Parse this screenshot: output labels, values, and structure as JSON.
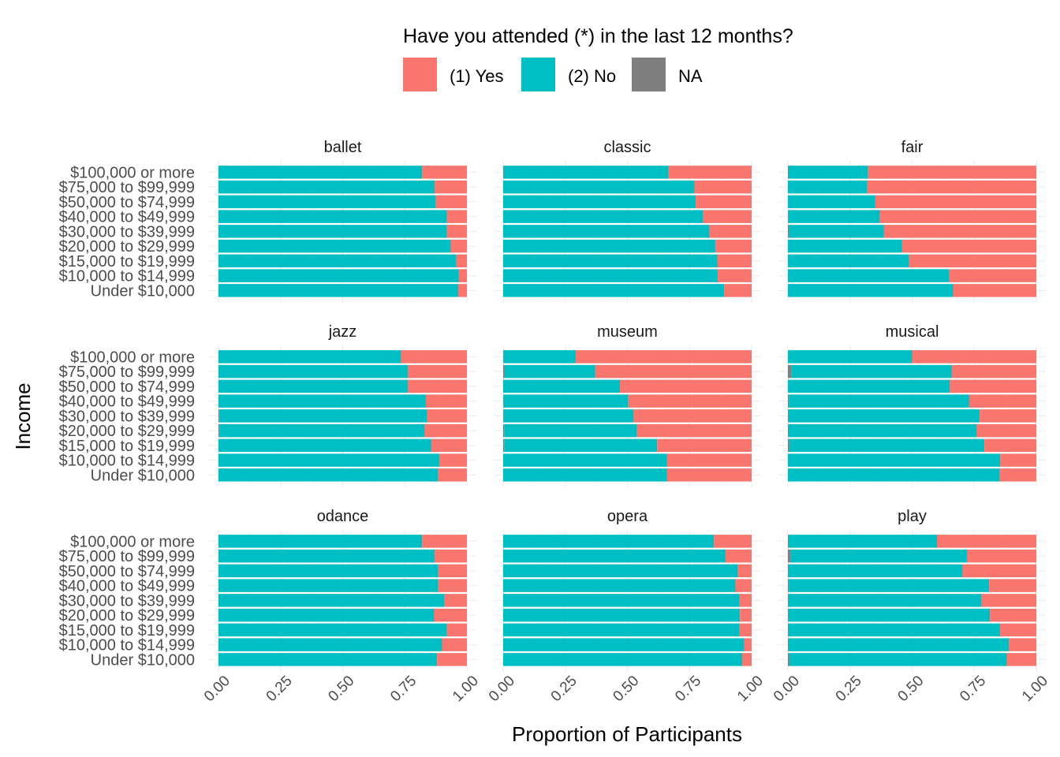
{
  "chart_data": {
    "type": "bar",
    "orientation": "horizontal",
    "stacked": "proportion",
    "legend": {
      "title": "Have you attended (*) in the last 12 months?",
      "position": "top",
      "entries": [
        {
          "label": "(1) Yes",
          "color": "#F8766D"
        },
        {
          "label": "(2) No",
          "color": "#00BFC4"
        },
        {
          "label": "NA",
          "color": "#7F7F7F"
        }
      ]
    },
    "xlabel": "Proportion of Participants",
    "ylabel": "Income",
    "xlim": [
      0,
      1
    ],
    "xticks": [
      "0.00",
      "0.25",
      "0.50",
      "0.75",
      "1.00"
    ],
    "grid": true,
    "categories": [
      "$100,000 or more",
      "$75,000 to $99,999",
      "$50,000 to $74,999",
      "$40,000 to $49,999",
      "$30,000 to $39,999",
      "$20,000 to $29,999",
      "$15,000 to $19,999",
      "$10,000 to $14,999",
      "Under $10,000"
    ],
    "panels": [
      {
        "title": "ballet",
        "na": [
          0,
          0,
          0,
          0,
          0,
          0,
          0,
          0,
          0
        ],
        "no": [
          0.82,
          0.87,
          0.875,
          0.92,
          0.92,
          0.935,
          0.958,
          0.968,
          0.965
        ],
        "yes": [
          0.18,
          0.13,
          0.125,
          0.08,
          0.08,
          0.065,
          0.042,
          0.032,
          0.035
        ]
      },
      {
        "title": "classic",
        "na": [
          0.003,
          0,
          0,
          0,
          0,
          0,
          0,
          0,
          0
        ],
        "no": [
          0.663,
          0.77,
          0.775,
          0.805,
          0.83,
          0.855,
          0.862,
          0.864,
          0.89
        ],
        "yes": [
          0.334,
          0.23,
          0.225,
          0.195,
          0.17,
          0.145,
          0.138,
          0.136,
          0.11
        ]
      },
      {
        "title": "fair",
        "na": [
          0.003,
          0,
          0,
          0.002,
          0.005,
          0,
          0,
          0,
          0
        ],
        "no": [
          0.32,
          0.32,
          0.352,
          0.368,
          0.382,
          0.46,
          0.488,
          0.65,
          0.665
        ],
        "yes": [
          0.677,
          0.68,
          0.648,
          0.63,
          0.613,
          0.54,
          0.512,
          0.35,
          0.335
        ]
      },
      {
        "title": "jazz",
        "na": [
          0,
          0,
          0,
          0,
          0.004,
          0.004,
          0,
          0,
          0
        ],
        "no": [
          0.735,
          0.763,
          0.763,
          0.835,
          0.836,
          0.826,
          0.857,
          0.89,
          0.885
        ],
        "yes": [
          0.265,
          0.237,
          0.237,
          0.165,
          0.16,
          0.17,
          0.143,
          0.11,
          0.115
        ]
      },
      {
        "title": "museum",
        "na": [
          0.002,
          0.006,
          0,
          0.002,
          0.002,
          0.004,
          0.004,
          0,
          0
        ],
        "no": [
          0.29,
          0.365,
          0.47,
          0.502,
          0.523,
          0.535,
          0.616,
          0.66,
          0.66
        ],
        "yes": [
          0.708,
          0.629,
          0.53,
          0.496,
          0.475,
          0.461,
          0.38,
          0.34,
          0.34
        ]
      },
      {
        "title": "musical",
        "na": [
          0,
          0.015,
          0,
          0.004,
          0.003,
          0.003,
          0.006,
          0,
          0
        ],
        "no": [
          0.5,
          0.645,
          0.652,
          0.726,
          0.769,
          0.757,
          0.785,
          0.855,
          0.853
        ],
        "yes": [
          0.5,
          0.34,
          0.348,
          0.27,
          0.228,
          0.24,
          0.209,
          0.145,
          0.147
        ]
      },
      {
        "title": "odance",
        "na": [
          0,
          0,
          0,
          0,
          0,
          0,
          0,
          0,
          0
        ],
        "no": [
          0.82,
          0.87,
          0.885,
          0.885,
          0.91,
          0.868,
          0.92,
          0.9,
          0.88
        ],
        "yes": [
          0.18,
          0.13,
          0.115,
          0.115,
          0.09,
          0.132,
          0.08,
          0.1,
          0.12
        ]
      },
      {
        "title": "opera",
        "na": [
          0,
          0,
          0,
          0,
          0,
          0,
          0,
          0,
          0
        ],
        "no": [
          0.848,
          0.895,
          0.945,
          0.935,
          0.952,
          0.953,
          0.952,
          0.97,
          0.962
        ],
        "yes": [
          0.152,
          0.105,
          0.055,
          0.065,
          0.048,
          0.047,
          0.048,
          0.03,
          0.038
        ]
      },
      {
        "title": "play",
        "na": [
          0.003,
          0.012,
          0.003,
          0.004,
          0.003,
          0.003,
          0.003,
          0.003,
          0.006
        ],
        "no": [
          0.597,
          0.71,
          0.7,
          0.806,
          0.777,
          0.81,
          0.851,
          0.887,
          0.875
        ],
        "yes": [
          0.4,
          0.278,
          0.297,
          0.19,
          0.22,
          0.187,
          0.146,
          0.11,
          0.119
        ]
      }
    ]
  }
}
